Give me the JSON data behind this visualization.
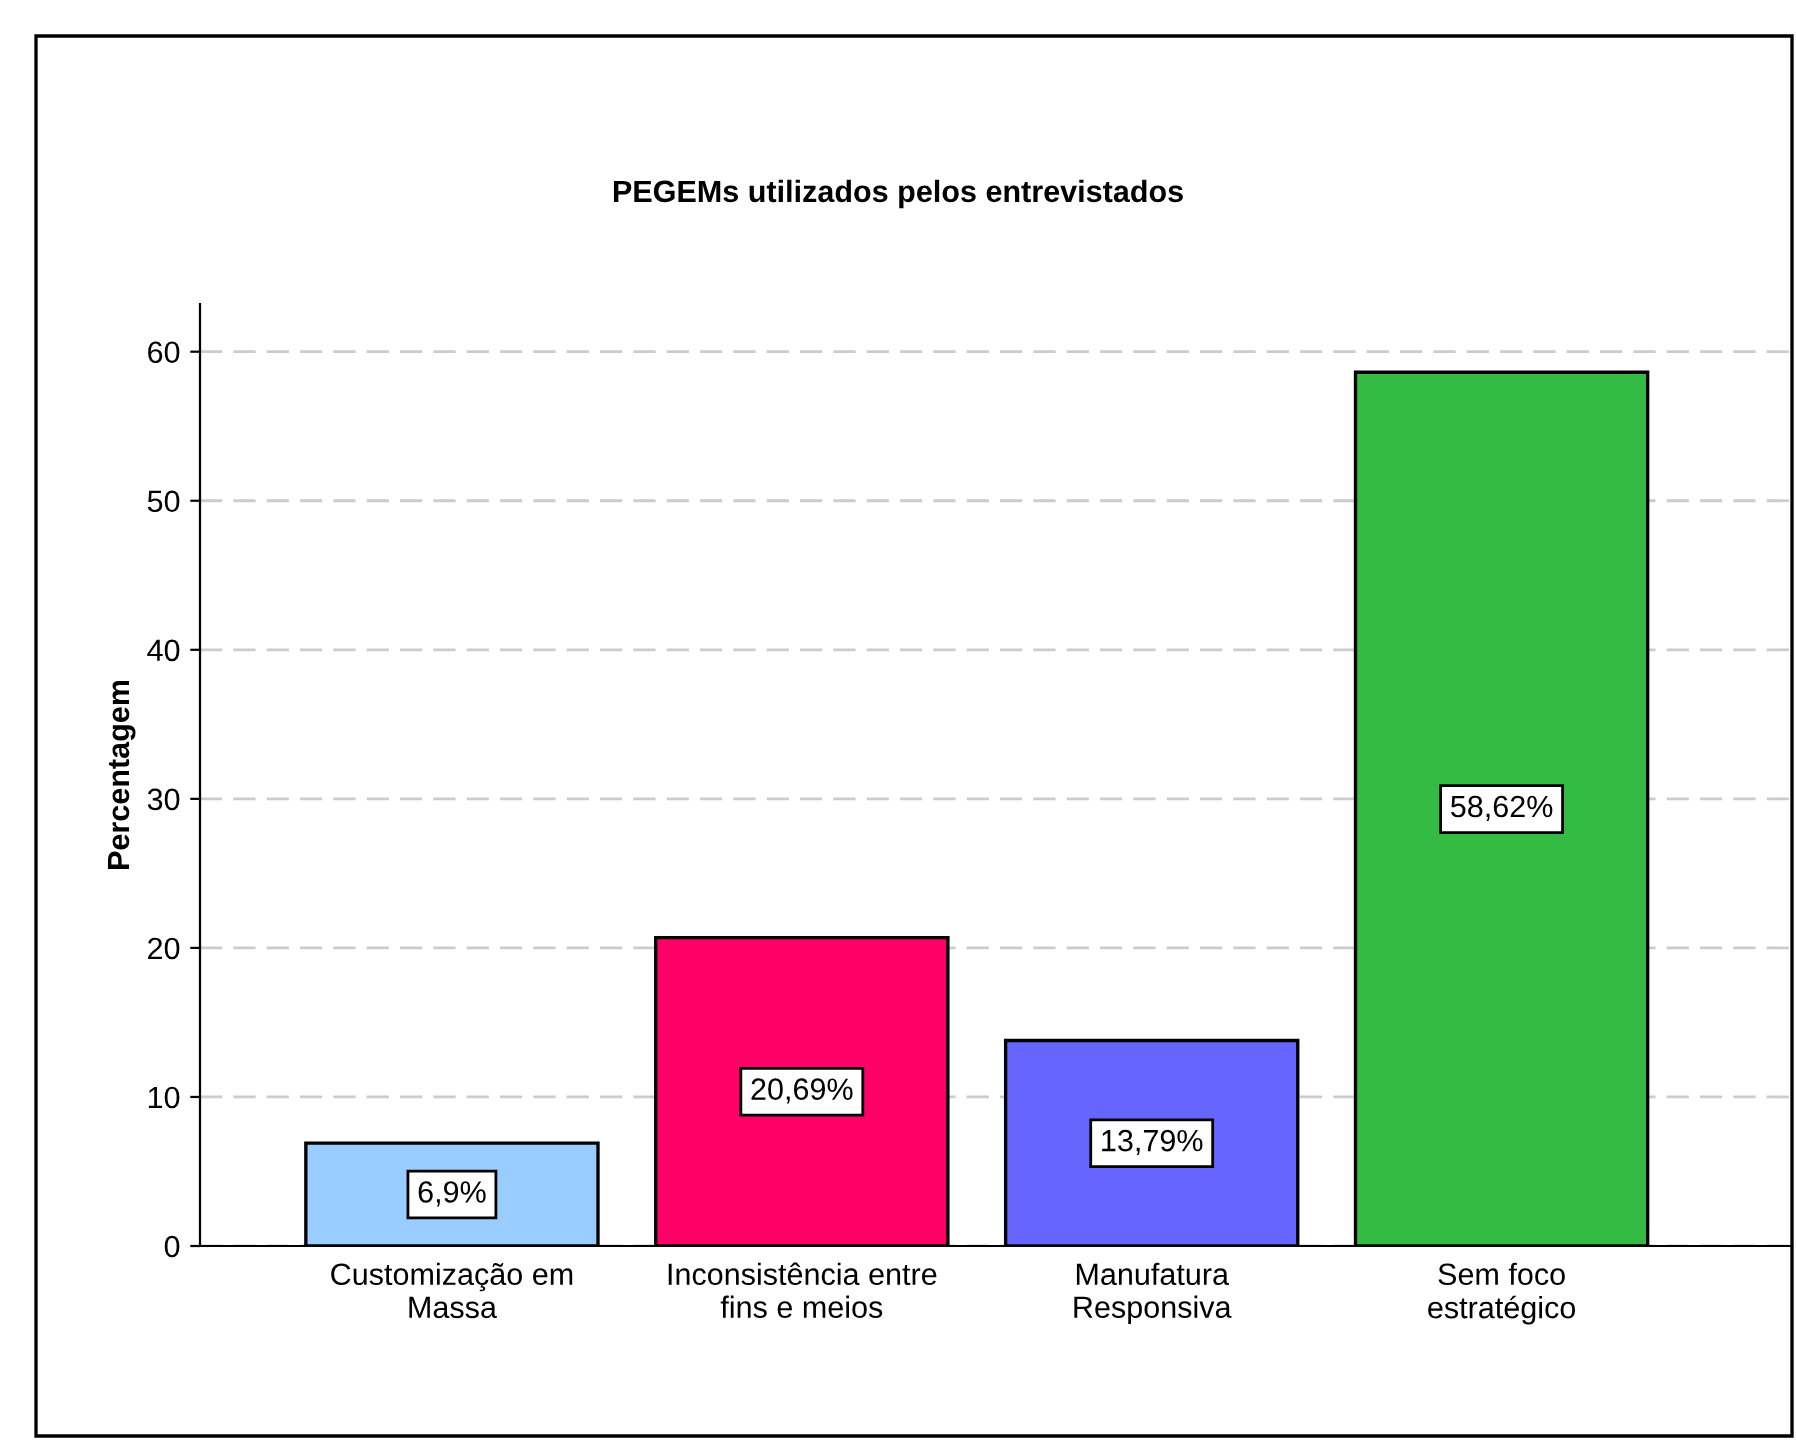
{
  "chart_data": {
    "type": "bar",
    "title": "PEGEMs utilizados pelos entrevistados",
    "ylabel": "Percentagem",
    "categories": [
      "Customização em\nMassa",
      "Inconsistência entre\nfins e meios",
      "Manufatura\nResponsiva",
      "Sem foco\nestratégico"
    ],
    "values": [
      6.9,
      20.69,
      13.79,
      58.62
    ],
    "colors": [
      "#99ccff",
      "#ff0066",
      "#6666ff",
      "#33bb44"
    ],
    "value_labels": [
      "6,9%",
      "20,69%",
      "13,79%",
      "58,62%"
    ],
    "ylim": [
      0,
      63.2
    ],
    "yticks": [
      0,
      10,
      20,
      30,
      40,
      50,
      60
    ],
    "grid": "y",
    "legend": false
  }
}
